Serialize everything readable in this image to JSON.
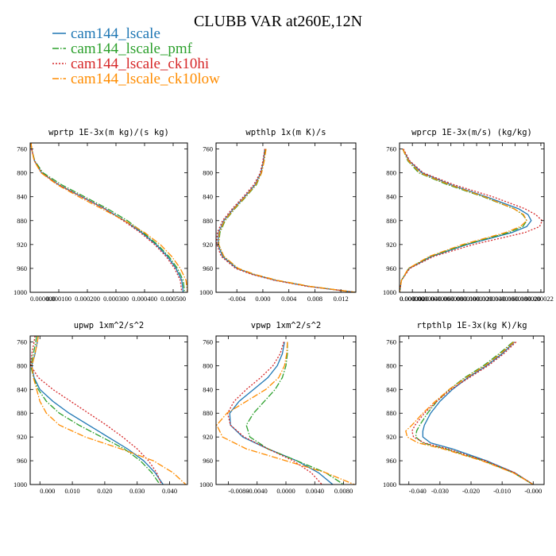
{
  "figure": {
    "title": "CLUBB VAR at260E,12N"
  },
  "colors": {
    "cam144_lscale": "#1f77b4",
    "cam144_lscale_pmf": "#2ca02c",
    "cam144_lscale_ck10hi": "#d62728",
    "cam144_lscale_ck10low": "#ff8c00"
  },
  "legend": [
    {
      "label": "cam144_lscale",
      "color": "#1f77b4",
      "dash": "solid"
    },
    {
      "label": "cam144_lscale_pmf",
      "color": "#2ca02c",
      "dash": "dashdot"
    },
    {
      "label": "cam144_lscale_ck10hi",
      "color": "#d62728",
      "dash": "dot"
    },
    {
      "label": "cam144_lscale_ck10low",
      "color": "#ff8c00",
      "dash": "dashdot"
    }
  ],
  "chart_data": [
    {
      "type": "line",
      "title": "wprtp  1E-3x(m kg)/(s kg)",
      "ylim": [
        1000,
        750
      ],
      "yticks": [
        760,
        800,
        840,
        880,
        920,
        960,
        1000
      ],
      "xlim": [
        0,
        0.00055
      ],
      "xticks": [
        0,
        0.0001,
        0.0002,
        0.0003,
        0.0004,
        0.0005
      ],
      "xticklabels": [
        "0.000000",
        "0.000100",
        "0.000200",
        "0.000300",
        "0.000400",
        "0.000500"
      ],
      "y": [
        750,
        760,
        780,
        800,
        820,
        840,
        860,
        880,
        900,
        920,
        940,
        960,
        980,
        1000
      ],
      "series": [
        {
          "key": "cam144_lscale",
          "values": [
            3e-06,
            5e-06,
            1.5e-05,
            4e-05,
            0.0001,
            0.00018,
            0.00026,
            0.00033,
            0.00039,
            0.00044,
            0.00048,
            0.00051,
            0.00053,
            0.000535
          ]
        },
        {
          "key": "cam144_lscale_pmf",
          "values": [
            3e-06,
            5e-06,
            1.6e-05,
            4.5e-05,
            0.00011,
            0.00019,
            0.00027,
            0.00034,
            0.000395,
            0.000445,
            0.000485,
            0.000515,
            0.000535,
            0.00054
          ]
        },
        {
          "key": "cam144_lscale_ck10hi",
          "values": [
            3e-06,
            5e-06,
            1.5e-05,
            4e-05,
            0.0001,
            0.00018,
            0.00026,
            0.000325,
            0.000385,
            0.000435,
            0.000475,
            0.000505,
            0.000525,
            0.00053
          ]
        },
        {
          "key": "cam144_lscale_ck10low",
          "values": [
            3e-06,
            5e-06,
            1.4e-05,
            3.8e-05,
            9.5e-05,
            0.00017,
            0.00025,
            0.00033,
            0.0004,
            0.000455,
            0.000495,
            0.000525,
            0.000545,
            0.00055
          ]
        }
      ]
    },
    {
      "type": "line",
      "title": "wpthlp  1x(m K)/s",
      "ylim": [
        1000,
        750
      ],
      "yticks": [
        760,
        800,
        840,
        880,
        920,
        960,
        1000
      ],
      "xlim": [
        -0.0072,
        0.0143
      ],
      "xticks": [
        -0.004,
        0,
        0.004,
        0.008,
        0.012
      ],
      "xticklabels": [
        "-0.004",
        "0.000",
        "0.004",
        "0.008",
        "0.012"
      ],
      "y": [
        760,
        780,
        800,
        820,
        840,
        860,
        880,
        900,
        920,
        940,
        960,
        970,
        980,
        990,
        1000
      ],
      "series": [
        {
          "key": "cam144_lscale",
          "values": [
            0.0003,
            0.0001,
            -0.0003,
            -0.0012,
            -0.0028,
            -0.0045,
            -0.006,
            -0.0068,
            -0.0069,
            -0.0062,
            -0.004,
            -0.0015,
            0.002,
            0.007,
            0.0142
          ]
        },
        {
          "key": "cam144_lscale_pmf",
          "values": [
            0.0004,
            0.0002,
            -0.0002,
            -0.001,
            -0.0026,
            -0.0043,
            -0.0058,
            -0.0066,
            -0.0068,
            -0.006,
            -0.0038,
            -0.0013,
            0.0022,
            0.0072,
            0.0142
          ]
        },
        {
          "key": "cam144_lscale_ck10hi",
          "values": [
            0.0003,
            0.0,
            -0.0004,
            -0.0014,
            -0.003,
            -0.0047,
            -0.0062,
            -0.007,
            -0.0071,
            -0.0064,
            -0.0042,
            -0.0017,
            0.0018,
            0.0068,
            0.0142
          ]
        },
        {
          "key": "cam144_lscale_ck10low",
          "values": [
            0.0005,
            0.0002,
            -0.0002,
            -0.0011,
            -0.0027,
            -0.0044,
            -0.0059,
            -0.0067,
            -0.0068,
            -0.006,
            -0.0038,
            -0.0013,
            0.0022,
            0.0072,
            0.0142
          ]
        }
      ]
    },
    {
      "type": "line",
      "title": "wprcp  1E-3x(m/s) (kg/kg)",
      "ylim": [
        1000,
        750
      ],
      "yticks": [
        760,
        800,
        840,
        880,
        920,
        960,
        1000
      ],
      "xlim": [
        0,
        2.25e-05
      ],
      "xticks": [
        0,
        2e-06,
        4e-06,
        6e-06,
        8e-06,
        1e-05,
        1.2e-05,
        1.4e-05,
        1.6e-05,
        1.8e-05,
        2e-05,
        2.2e-05
      ],
      "xticklabels": [
        "0.000000",
        "0.000002",
        "0.000004",
        "0.000006",
        "0.000008",
        "0.000010",
        "0.000012",
        "0.000014",
        "0.000016",
        "0.000018",
        "0.000020",
        "0.000022"
      ],
      "y": [
        760,
        780,
        800,
        820,
        840,
        860,
        870,
        880,
        890,
        900,
        920,
        940,
        960,
        980,
        1000
      ],
      "series": [
        {
          "key": "cam144_lscale",
          "values": [
            5e-07,
            1.5e-06,
            3.5e-06,
            8e-06,
            1.35e-05,
            1.85e-05,
            2e-05,
            2.05e-05,
            1.98e-05,
            1.75e-05,
            1.05e-05,
            5e-06,
            1.5e-06,
            3e-07,
            0.0
          ]
        },
        {
          "key": "cam144_lscale_pmf",
          "values": [
            5e-07,
            1.3e-06,
            3e-06,
            7.5e-06,
            1.3e-05,
            1.78e-05,
            1.92e-05,
            1.98e-05,
            1.92e-05,
            1.7e-05,
            1.02e-05,
            4.8e-06,
            1.4e-06,
            3e-07,
            0.0
          ]
        },
        {
          "key": "cam144_lscale_ck10hi",
          "values": [
            6e-07,
            1.6e-06,
            3.7e-06,
            8.5e-06,
            1.45e-05,
            1.95e-05,
            2.12e-05,
            2.22e-05,
            2.18e-05,
            1.95e-05,
            1.15e-05,
            5.3e-06,
            1.6e-06,
            3e-07,
            0.0
          ]
        },
        {
          "key": "cam144_lscale_ck10low",
          "values": [
            5e-07,
            1.4e-06,
            3.2e-06,
            7.8e-06,
            1.32e-05,
            1.78e-05,
            1.93e-05,
            1.98e-05,
            1.88e-05,
            1.65e-05,
            9.8e-06,
            4.6e-06,
            1.4e-06,
            3e-07,
            0.0
          ]
        }
      ]
    },
    {
      "type": "line",
      "title": "upwp  1xm^2/s^2",
      "ylim": [
        1000,
        750
      ],
      "yticks": [
        760,
        800,
        840,
        880,
        920,
        960,
        1000
      ],
      "xlim": [
        -0.003,
        0.0455
      ],
      "xticks": [
        0,
        0.01,
        0.02,
        0.03,
        0.04
      ],
      "xticklabels": [
        "0.000",
        "0.010",
        "0.020",
        "0.030",
        "0.040"
      ],
      "y": [
        750,
        760,
        780,
        800,
        820,
        840,
        860,
        880,
        900,
        920,
        940,
        960,
        980,
        1000
      ],
      "series": [
        {
          "key": "cam144_lscale",
          "values": [
            -0.0005,
            -0.0008,
            -0.0015,
            -0.0025,
            -0.0018,
            0.0,
            0.004,
            0.009,
            0.015,
            0.021,
            0.027,
            0.032,
            0.0355,
            0.038
          ]
        },
        {
          "key": "cam144_lscale_pmf",
          "values": [
            -0.001,
            -0.0013,
            -0.002,
            -0.0028,
            -0.002,
            -0.0005,
            0.002,
            0.006,
            0.012,
            0.019,
            0.026,
            0.031,
            0.0345,
            0.037
          ]
        },
        {
          "key": "cam144_lscale_ck10hi",
          "values": [
            -0.0015,
            -0.0018,
            -0.0025,
            -0.0028,
            -0.0005,
            0.004,
            0.0095,
            0.015,
            0.0205,
            0.0255,
            0.03,
            0.0335,
            0.036,
            0.0375
          ]
        },
        {
          "key": "cam144_lscale_ck10low",
          "values": [
            -0.0005,
            -0.0008,
            -0.0015,
            -0.0025,
            -0.002,
            -0.001,
            0.0,
            0.002,
            0.006,
            0.014,
            0.025,
            0.035,
            0.041,
            0.045
          ]
        }
      ]
    },
    {
      "type": "line",
      "title": "vpwp  1xm^2/s^2",
      "ylim": [
        1000,
        750
      ],
      "yticks": [
        760,
        800,
        840,
        880,
        920,
        960,
        1000
      ],
      "xlim": [
        -0.0097,
        0.0097
      ],
      "xticks": [
        -0.008,
        -0.004,
        0,
        0.004,
        0.008
      ],
      "xticklabels": [
        "-0.0080",
        "-0.0040",
        "0.0000",
        "0.0040",
        "0.0080"
      ],
      "y": [
        760,
        780,
        800,
        820,
        840,
        860,
        880,
        900,
        920,
        940,
        960,
        980,
        1000
      ],
      "series": [
        {
          "key": "cam144_lscale",
          "values": [
            -0.0002,
            -0.0005,
            -0.0012,
            -0.0025,
            -0.0045,
            -0.0065,
            -0.0078,
            -0.0077,
            -0.006,
            -0.0025,
            0.0015,
            0.0045,
            0.0065
          ]
        },
        {
          "key": "cam144_lscale_pmf",
          "values": [
            0.0002,
            0.0002,
            0.0,
            -0.0005,
            -0.0015,
            -0.003,
            -0.0045,
            -0.0055,
            -0.005,
            -0.0025,
            0.0015,
            0.0055,
            0.008
          ]
        },
        {
          "key": "cam144_lscale_ck10hi",
          "values": [
            -0.0003,
            -0.0008,
            -0.0018,
            -0.0035,
            -0.0055,
            -0.0072,
            -0.0081,
            -0.0077,
            -0.0058,
            -0.0025,
            0.001,
            0.0035,
            0.005
          ]
        },
        {
          "key": "cam144_lscale_ck10low",
          "values": [
            0.0002,
            0.0001,
            -0.0002,
            -0.001,
            -0.0028,
            -0.0055,
            -0.0082,
            -0.0096,
            -0.0088,
            -0.0055,
            0.0,
            0.0055,
            0.0095
          ]
        }
      ]
    },
    {
      "type": "line",
      "title": "rtpthlp  1E-3x(kg K)/kg",
      "ylim": [
        1000,
        750
      ],
      "yticks": [
        760,
        800,
        840,
        880,
        920,
        960,
        1000
      ],
      "xlim": [
        -0.043,
        0.0035
      ],
      "xticks": [
        -0.04,
        -0.03,
        -0.02,
        -0.01,
        0
      ],
      "xticklabels": [
        "-0.040",
        "-0.030",
        "-0.020",
        "-0.010",
        "-0.000"
      ],
      "y": [
        760,
        780,
        800,
        820,
        840,
        860,
        880,
        900,
        910,
        920,
        930,
        940,
        960,
        980,
        1000
      ],
      "series": [
        {
          "key": "cam144_lscale",
          "values": [
            -0.006,
            -0.01,
            -0.015,
            -0.021,
            -0.026,
            -0.03,
            -0.033,
            -0.035,
            -0.0355,
            -0.0355,
            -0.033,
            -0.026,
            -0.015,
            -0.006,
            0.0
          ]
        },
        {
          "key": "cam144_lscale_pmf",
          "values": [
            -0.0065,
            -0.011,
            -0.016,
            -0.022,
            -0.027,
            -0.031,
            -0.034,
            -0.0365,
            -0.0375,
            -0.0378,
            -0.0355,
            -0.028,
            -0.016,
            -0.0065,
            0.0
          ]
        },
        {
          "key": "cam144_lscale_ck10hi",
          "values": [
            -0.0055,
            -0.0095,
            -0.0145,
            -0.0205,
            -0.0265,
            -0.031,
            -0.035,
            -0.038,
            -0.039,
            -0.0385,
            -0.035,
            -0.0275,
            -0.0155,
            -0.006,
            0.0
          ]
        },
        {
          "key": "cam144_lscale_ck10low",
          "values": [
            -0.0062,
            -0.0105,
            -0.0155,
            -0.0215,
            -0.027,
            -0.0315,
            -0.0355,
            -0.039,
            -0.041,
            -0.0405,
            -0.037,
            -0.029,
            -0.0165,
            -0.0065,
            0.0
          ]
        }
      ]
    }
  ]
}
